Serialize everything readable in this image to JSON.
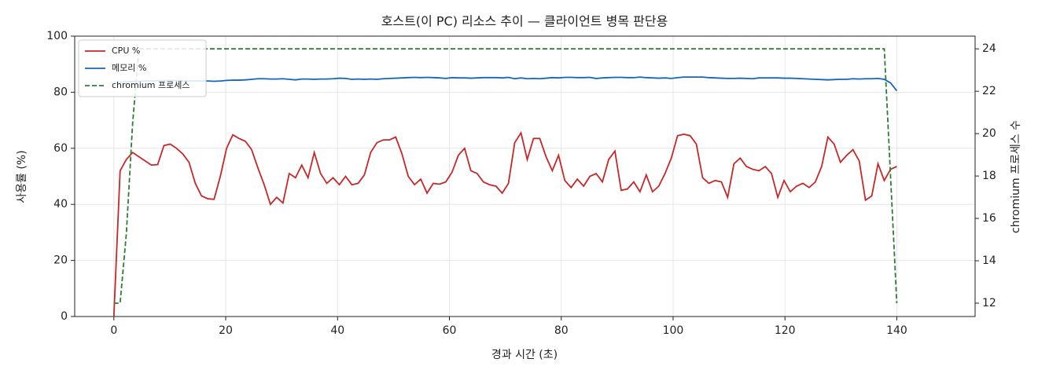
{
  "chart_data": {
    "type": "line",
    "title": "호스트(이 PC) 리소스 추이 — 클라이언트 병목 판단용",
    "xlabel": "경과 시간 (초)",
    "ylabel": "사용률 (%)",
    "y2label": "chromium 프로세스 수",
    "x": [
      0,
      1.12,
      2.24,
      3.36,
      4.48,
      5.6,
      6.72,
      7.84,
      8.96,
      10.08,
      11.2,
      12.32,
      13.44,
      14.56,
      15.68,
      16.8,
      17.92,
      19.04,
      20.16,
      21.28,
      22.4,
      23.52,
      24.64,
      25.76,
      26.88,
      28,
      29.12,
      30.24,
      31.36,
      32.48,
      33.6,
      34.72,
      35.84,
      36.96,
      38.08,
      39.2,
      40.32,
      41.44,
      42.56,
      43.68,
      44.8,
      45.92,
      47.04,
      48.16,
      49.28,
      50.4,
      51.52,
      52.64,
      53.76,
      54.88,
      56,
      57.12,
      58.24,
      59.36,
      60.48,
      61.6,
      62.72,
      63.84,
      64.96,
      66.08,
      67.2,
      68.32,
      69.44,
      70.56,
      71.68,
      72.8,
      73.92,
      75.04,
      76.16,
      77.28,
      78.4,
      79.52,
      80.64,
      81.76,
      82.88,
      84,
      85.12,
      86.24,
      87.36,
      88.48,
      89.6,
      90.72,
      91.84,
      92.96,
      94.08,
      95.2,
      96.32,
      97.44,
      98.56,
      99.68,
      100.8,
      101.92,
      103.04,
      104.16,
      105.28,
      106.4,
      107.52,
      108.64,
      109.76,
      110.88,
      112,
      113.12,
      114.24,
      115.36,
      116.48,
      117.6,
      118.72,
      119.84,
      120.96,
      122.08,
      123.2,
      124.32,
      125.44,
      126.56,
      127.68,
      128.8,
      129.92,
      131.04,
      132.16,
      133.28,
      134.4,
      135.52,
      136.64,
      137.76,
      138.88,
      140
    ],
    "series": [
      {
        "name": "CPU %",
        "color": "#c62828",
        "dash": "solid",
        "values": [
          0,
          52,
          56,
          58.5,
          57,
          55.5,
          54,
          54.2,
          61,
          61.5,
          60,
          58,
          55,
          47.5,
          43,
          42,
          41.8,
          50,
          60,
          64.8,
          63.5,
          62.5,
          59.5,
          53,
          47,
          40,
          42.5,
          40.5,
          51,
          49.5,
          54,
          49.5,
          58.5,
          51,
          47.5,
          49.5,
          47,
          50,
          47,
          47.5,
          50.5,
          58.5,
          62,
          63,
          63,
          64,
          58,
          50,
          47,
          49,
          44,
          47.5,
          47.2,
          48,
          51.5,
          57.5,
          60,
          52,
          51,
          48,
          47,
          46.5,
          44,
          47.5,
          62,
          65.5,
          56,
          63.5,
          63.5,
          57,
          52,
          57.5,
          48.5,
          46,
          49,
          46.5,
          50,
          51,
          48,
          56,
          59,
          45,
          45.5,
          48,
          44.5,
          50.5,
          44.5,
          46.5,
          51,
          56.5,
          64.5,
          65,
          64.5,
          61.5,
          49.5,
          47.5,
          48.5,
          48,
          42.5,
          54.5,
          56.5,
          53.5,
          52.5,
          52,
          53.5,
          51,
          42.5,
          48.5,
          44.5,
          46.5,
          47.5,
          46,
          48,
          53.5,
          64,
          61.5,
          55,
          57.5,
          59.5,
          55.5,
          41.5,
          43,
          54.5,
          48.5,
          52.5,
          53.5
        ]
      },
      {
        "name": "메모리 %",
        "color": "#1565c0",
        "dash": "solid",
        "values": [
          83.5,
          83.6,
          83.7,
          83.8,
          83.9,
          84,
          84,
          84.1,
          84.1,
          84.2,
          84.1,
          84,
          84,
          84.1,
          84,
          84,
          83.9,
          84,
          84.2,
          84.3,
          84.3,
          84.4,
          84.6,
          84.8,
          84.8,
          84.7,
          84.7,
          84.8,
          84.6,
          84.4,
          84.7,
          84.7,
          84.6,
          84.7,
          84.7,
          84.8,
          85,
          84.9,
          84.6,
          84.7,
          84.6,
          84.7,
          84.6,
          84.8,
          84.9,
          85,
          85.1,
          85.2,
          85.3,
          85.2,
          85.3,
          85.2,
          85.1,
          84.9,
          85.2,
          85.1,
          85.1,
          85,
          85.1,
          85.2,
          85.2,
          85.2,
          85.1,
          85.3,
          84.8,
          85.1,
          84.8,
          84.9,
          84.8,
          85,
          85.2,
          85.1,
          85.3,
          85.3,
          85.2,
          85.2,
          85.3,
          84.9,
          85.1,
          85.2,
          85.3,
          85.3,
          85.2,
          85.2,
          85.4,
          85.2,
          85.1,
          85,
          85.1,
          84.9,
          85.2,
          85.4,
          85.4,
          85.4,
          85.4,
          85.2,
          85.1,
          85,
          84.9,
          84.9,
          85,
          84.9,
          84.8,
          85.1,
          85.1,
          85.1,
          85.1,
          85,
          85,
          84.9,
          84.8,
          84.7,
          84.6,
          84.5,
          84.4,
          84.5,
          84.6,
          84.6,
          84.8,
          84.7,
          84.8,
          84.8,
          84.9,
          84.6,
          83.3,
          80.5
        ]
      },
      {
        "name": "chromium 프로세스",
        "color": "#2e7d32",
        "dash": "dashed",
        "axis": "y2",
        "values": [
          12,
          12,
          15.3,
          20.5,
          24,
          24,
          24,
          24,
          24,
          24,
          24,
          24,
          24,
          24,
          24,
          24,
          24,
          24,
          24,
          24,
          24,
          24,
          24,
          24,
          24,
          24,
          24,
          24,
          24,
          24,
          24,
          24,
          24,
          24,
          24,
          24,
          24,
          24,
          24,
          24,
          24,
          24,
          24,
          24,
          24,
          24,
          24,
          24,
          24,
          24,
          24,
          24,
          24,
          24,
          24,
          24,
          24,
          24,
          24,
          24,
          24,
          24,
          24,
          24,
          24,
          24,
          24,
          24,
          24,
          24,
          24,
          24,
          24,
          24,
          24,
          24,
          24,
          24,
          24,
          24,
          24,
          24,
          24,
          24,
          24,
          24,
          24,
          24,
          24,
          24,
          24,
          24,
          24,
          24,
          24,
          24,
          24,
          24,
          24,
          24,
          24,
          24,
          24,
          24,
          24,
          24,
          24,
          24,
          24,
          24,
          24,
          24,
          24,
          24,
          24,
          24,
          24,
          24,
          24,
          24,
          24,
          24,
          24,
          24,
          18,
          12
        ]
      }
    ],
    "xlim": [
      -7,
      154
    ],
    "xticks": [
      0,
      20,
      40,
      60,
      80,
      100,
      120,
      140
    ],
    "ylim": [
      0,
      100
    ],
    "yticks": [
      0,
      20,
      40,
      60,
      80,
      100
    ],
    "y2lim": [
      11.37,
      24.6
    ],
    "y2ticks": [
      12,
      14,
      16,
      18,
      20,
      22,
      24
    ],
    "grid": true,
    "legend": "upper left"
  }
}
